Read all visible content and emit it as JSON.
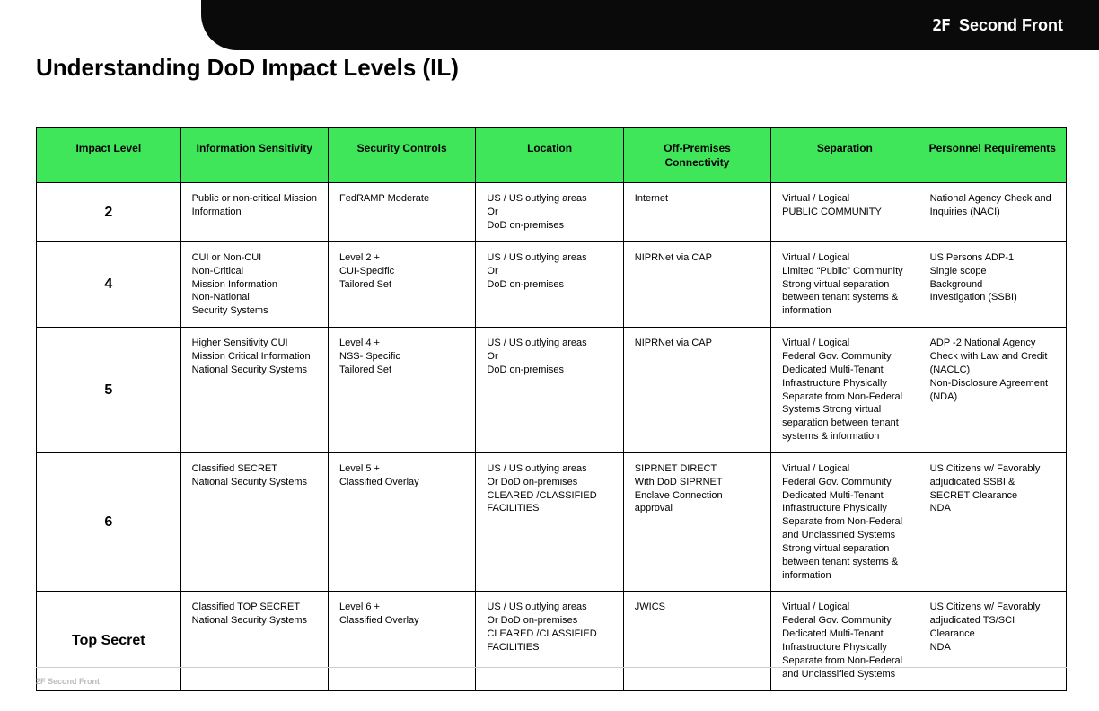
{
  "brand": {
    "logo_text": "2F",
    "name": "Second Front"
  },
  "title": "Understanding DoD Impact Levels (IL)",
  "footer": "2F Second Front",
  "colors": {
    "header_bg": "#3fe65a",
    "border": "#000000",
    "top_bar": "#0a0a0a",
    "text": "#000000"
  },
  "table": {
    "columns": [
      "Impact Level",
      "Information Sensitivity",
      "Security Controls",
      "Location",
      "Off-Premises Connectivity",
      "Separation",
      "Personnel Requirements"
    ],
    "rows": [
      {
        "level": "2",
        "info": "Public or non-critical Mission Information",
        "controls": "FedRAMP Moderate",
        "location": "US / US outlying areas\nOr\nDoD on-premises",
        "connectivity": "Internet",
        "separation": "Virtual / Logical\nPUBLIC COMMUNITY",
        "personnel": "National Agency Check and Inquiries (NACI)"
      },
      {
        "level": "4",
        "info": "CUI or Non-CUI\nNon-Critical\nMission Information\nNon-National\nSecurity Systems",
        "controls": "Level 2 +\nCUI-Specific\nTailored Set",
        "location": "US / US outlying areas\nOr\nDoD on-premises",
        "connectivity": "NIPRNet via CAP",
        "separation": "Virtual / Logical\nLimited “Public” Community\nStrong virtual separation between tenant systems & information",
        "personnel": "US Persons ADP-1\nSingle scope\nBackground\nInvestigation (SSBI)"
      },
      {
        "level": "5",
        "info": "Higher Sensitivity CUI Mission Critical Information National Security Systems",
        "controls": "Level 4 +\nNSS- Specific\nTailored Set",
        "location": "US / US outlying areas\nOr\nDoD on-premises",
        "connectivity": "NIPRNet via CAP",
        "separation": "Virtual / Logical\nFederal Gov. Community\nDedicated Multi-Tenant Infrastructure Physically Separate from Non-Federal Systems Strong virtual separation between tenant systems & information",
        "personnel": "ADP -2 National Agency Check with Law and Credit (NACLC)\nNon-Disclosure Agreement (NDA)"
      },
      {
        "level": "6",
        "info": "Classified SECRET\nNational Security Systems",
        "controls": "Level 5 +\nClassified Overlay",
        "location": "US / US outlying areas\nOr DoD on-premises\nCLEARED /CLASSIFIED FACILITIES",
        "connectivity": "SIPRNET DIRECT\nWith DoD SIPRNET Enclave Connection approval",
        "separation": "Virtual / Logical\nFederal Gov. Community\nDedicated Multi-Tenant Infrastructure Physically Separate from Non-Federal and Unclassified Systems Strong virtual separation between tenant systems & information",
        "personnel": "US Citizens w/ Favorably adjudicated SSBI & SECRET Clearance\nNDA"
      },
      {
        "level": "Top Secret",
        "info": "Classified TOP SECRET\nNational Security Systems",
        "controls": "Level 6 +\nClassified Overlay",
        "location": "US / US outlying areas\nOr DoD on-premises\nCLEARED /CLASSIFIED FACILITIES",
        "connectivity": "JWICS",
        "separation": "Virtual / Logical\nFederal Gov. Community\nDedicated Multi-Tenant Infrastructure Physically Separate from Non-Federal and Unclassified Systems",
        "personnel": "US Citizens w/ Favorably adjudicated TS/SCI Clearance\nNDA"
      }
    ]
  }
}
